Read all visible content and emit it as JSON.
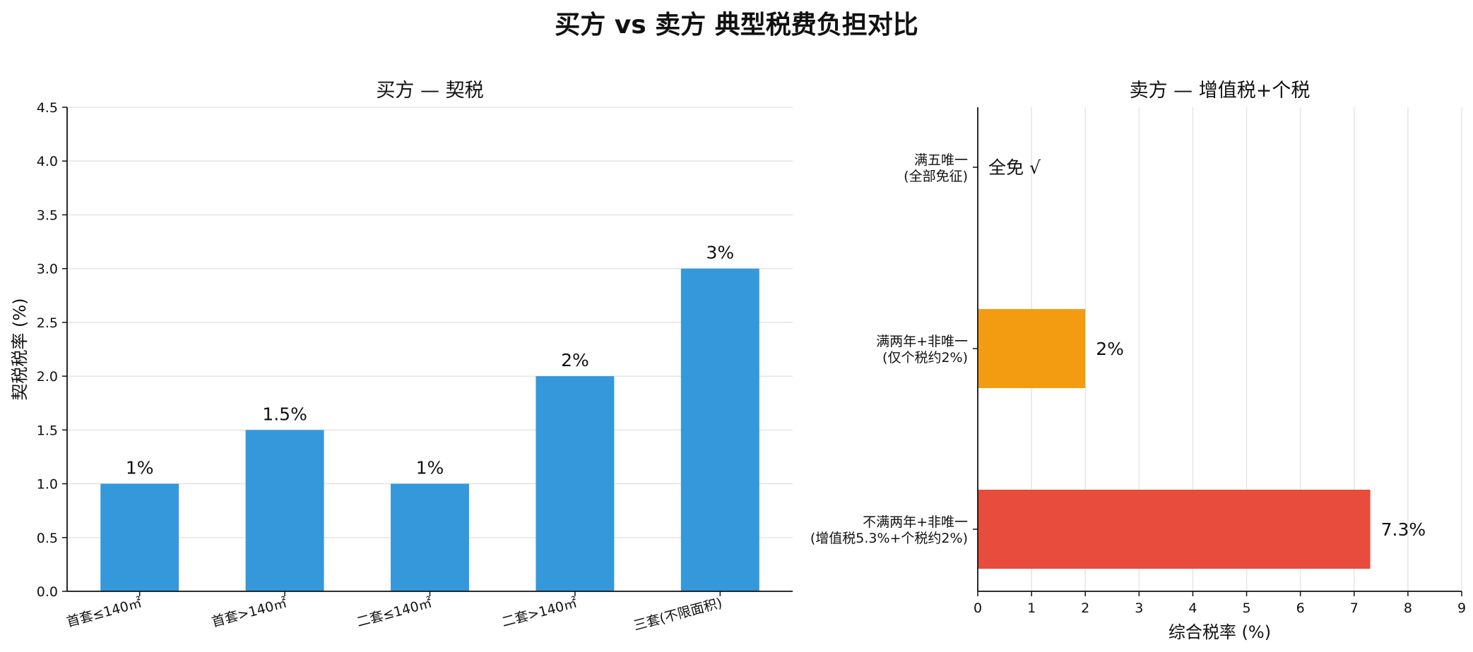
{
  "figure_title": "买方 vs 卖方 典型税费负担对比",
  "colors": {
    "buyer_bar": "#3498db",
    "seller_red": "#e74c3c",
    "seller_orange": "#f39c12",
    "grid": "#e5e5e5",
    "axis": "#111111"
  },
  "chart_data": [
    {
      "type": "bar",
      "title": "买方 — 契税",
      "xlabel": "",
      "ylabel": "契税税率 (%)",
      "categories": [
        "首套≤140㎡",
        "首套>140㎡",
        "二套≤140㎡",
        "二套>140㎡",
        "三套(不限面积)"
      ],
      "values": [
        1,
        1.5,
        1,
        2,
        3
      ],
      "data_labels": [
        "1%",
        "1.5%",
        "1%",
        "2%",
        "3%"
      ],
      "ylim": [
        0,
        4.5
      ],
      "yticks": [
        "0.0",
        "0.5",
        "1.0",
        "1.5",
        "2.0",
        "2.5",
        "3.0",
        "3.5",
        "4.0",
        "4.5"
      ],
      "grid": "y",
      "color": "#3498db"
    },
    {
      "type": "bar",
      "orientation": "horizontal",
      "title": "卖方 — 增值税+个税",
      "xlabel": "综合税率 (%)",
      "ylabel": "",
      "categories": [
        [
          "满五唯一",
          "(全部免征)"
        ],
        [
          "满两年+非唯一",
          "(仅个税约2%)"
        ],
        [
          "不满两年+非唯一",
          "(增值税5.3%+个税约2%)"
        ]
      ],
      "values": [
        0,
        2,
        7.3
      ],
      "data_labels": [
        "全免 √",
        "2%",
        "7.3%"
      ],
      "bar_colors": [
        "#3498db",
        "#f39c12",
        "#e74c3c"
      ],
      "xlim": [
        0,
        9
      ],
      "xticks": [
        "0",
        "1",
        "2",
        "3",
        "4",
        "5",
        "6",
        "7",
        "8",
        "9"
      ],
      "grid": "x"
    }
  ]
}
